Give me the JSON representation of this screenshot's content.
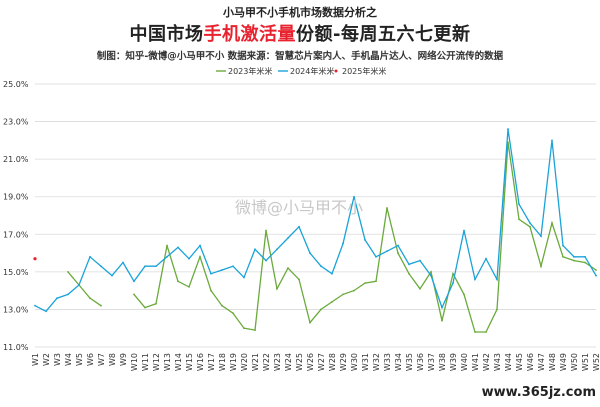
{
  "header": {
    "series_title": "小马甲不小手机市场数据分析之",
    "title_part1": "中国市场",
    "title_highlight": "手机激活量",
    "title_part2": "份额-每周五六七更新",
    "credit": "制图：知乎-微博@小马甲不小   数据来源：智慧芯片案内人、手机晶片达人、网络公开流传的数据"
  },
  "watermark": {
    "center": "微博@小马甲不小",
    "site": "www.365jz.com"
  },
  "colors": {
    "series_2023": "#6aaa3a",
    "series_2024": "#1aa3d9",
    "series_2025": "#e8232f",
    "grid": "#d9d9d9"
  },
  "chart_data": {
    "type": "line",
    "y_ticks": [
      "25.0%",
      "23.0%",
      "21.0%",
      "19.0%",
      "17.0%",
      "15.0%",
      "13.0%",
      "11.0%"
    ],
    "ylim": [
      11,
      25
    ],
    "y_step": 2,
    "grid": "horizontal",
    "legend_position": "top",
    "categories": [
      "W1",
      "W2",
      "W3",
      "W4",
      "W5",
      "W6",
      "W7",
      "W8",
      "W9",
      "W10",
      "W11",
      "W12",
      "W13",
      "W14",
      "W15",
      "W16",
      "W17",
      "W18",
      "W19",
      "W20",
      "W21",
      "W22",
      "W23",
      "W24",
      "W25",
      "W26",
      "W27",
      "W28",
      "W29",
      "W30",
      "W31",
      "W32",
      "W33",
      "W34",
      "W35",
      "W36",
      "W37",
      "W38",
      "W39",
      "W40",
      "W41",
      "W42",
      "W43",
      "W44",
      "W45",
      "W46",
      "W47",
      "W48",
      "W49",
      "W50",
      "W51",
      "W52"
    ],
    "series": [
      {
        "name": "2023年米米",
        "color_key": "series_2023",
        "values": [
          null,
          null,
          null,
          15.0,
          14.3,
          13.6,
          13.2,
          null,
          null,
          13.8,
          13.1,
          13.3,
          16.4,
          14.5,
          14.2,
          15.8,
          14.0,
          13.2,
          12.8,
          12.0,
          11.9,
          17.2,
          14.1,
          15.2,
          14.6,
          12.3,
          13.0,
          13.4,
          13.8,
          14.0,
          14.4,
          14.5,
          18.4,
          16.0,
          14.9,
          14.1,
          15.0,
          12.4,
          14.9,
          13.8,
          11.8,
          11.8,
          13.0,
          21.9,
          17.8,
          17.4,
          15.3,
          17.6,
          15.8,
          15.6,
          15.5,
          15.1
        ]
      },
      {
        "name": "2024年米米",
        "color_key": "series_2024",
        "values": [
          13.2,
          12.9,
          13.6,
          13.8,
          14.3,
          15.8,
          15.3,
          14.8,
          15.5,
          14.5,
          15.3,
          15.3,
          15.8,
          16.3,
          15.7,
          16.4,
          14.9,
          15.1,
          15.3,
          14.7,
          16.2,
          15.6,
          16.2,
          16.8,
          17.4,
          16.0,
          15.3,
          14.9,
          16.5,
          19.0,
          16.7,
          15.8,
          16.1,
          16.4,
          15.4,
          15.6,
          14.8,
          13.1,
          14.4,
          17.2,
          14.6,
          15.7,
          14.6,
          22.6,
          18.6,
          17.6,
          16.9,
          22.0,
          16.4,
          15.8,
          15.8,
          14.8
        ]
      },
      {
        "name": "2025年米米",
        "color_key": "series_2025",
        "values": [
          15.7,
          null,
          null,
          null,
          null,
          null,
          null,
          null,
          null,
          null,
          null,
          null,
          null,
          null,
          null,
          null,
          null,
          null,
          null,
          null,
          null,
          null,
          null,
          null,
          null,
          null,
          null,
          null,
          null,
          null,
          null,
          null,
          null,
          null,
          null,
          null,
          null,
          null,
          null,
          null,
          null,
          null,
          null,
          null,
          null,
          null,
          null,
          null,
          null,
          null,
          null,
          null
        ]
      }
    ]
  }
}
